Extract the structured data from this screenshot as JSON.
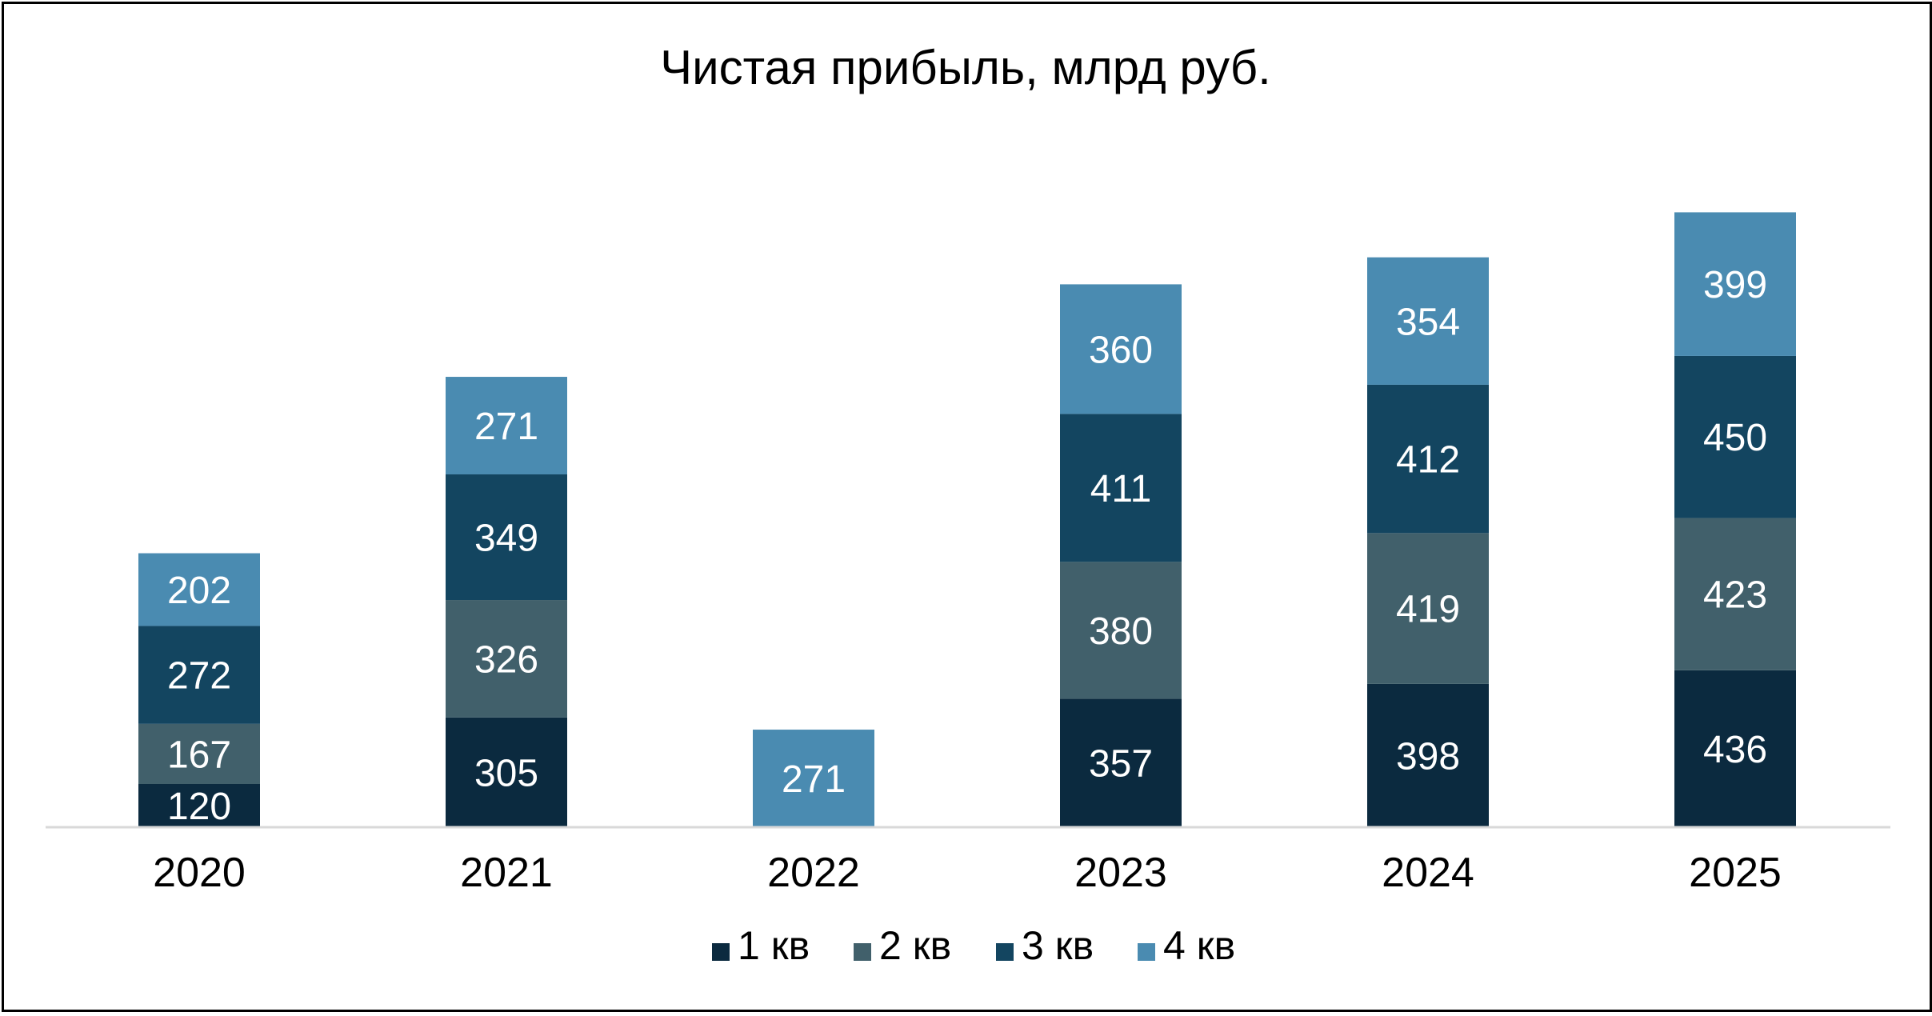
{
  "chart_data": {
    "type": "bar",
    "stacked": true,
    "title": "Чистая прибыль, млрд руб.",
    "xlabel": "",
    "ylabel": "",
    "categories": [
      "2020",
      "2021",
      "2022",
      "2023",
      "2024",
      "2025"
    ],
    "series": [
      {
        "name": "1 кв",
        "color": "#0b2a3f",
        "values": [
          120,
          305,
          null,
          357,
          398,
          436
        ]
      },
      {
        "name": "2 кв",
        "color": "#41606b",
        "values": [
          167,
          326,
          null,
          380,
          419,
          423
        ]
      },
      {
        "name": "3 кв",
        "color": "#134560",
        "values": [
          272,
          349,
          null,
          411,
          412,
          450
        ]
      },
      {
        "name": "4 кв",
        "color": "#4a8bb1",
        "values": [
          202,
          271,
          271,
          360,
          354,
          399
        ]
      }
    ],
    "ylim": [
      0,
      1820
    ],
    "grid": false,
    "legend_position": "bottom",
    "data_labels": true
  }
}
